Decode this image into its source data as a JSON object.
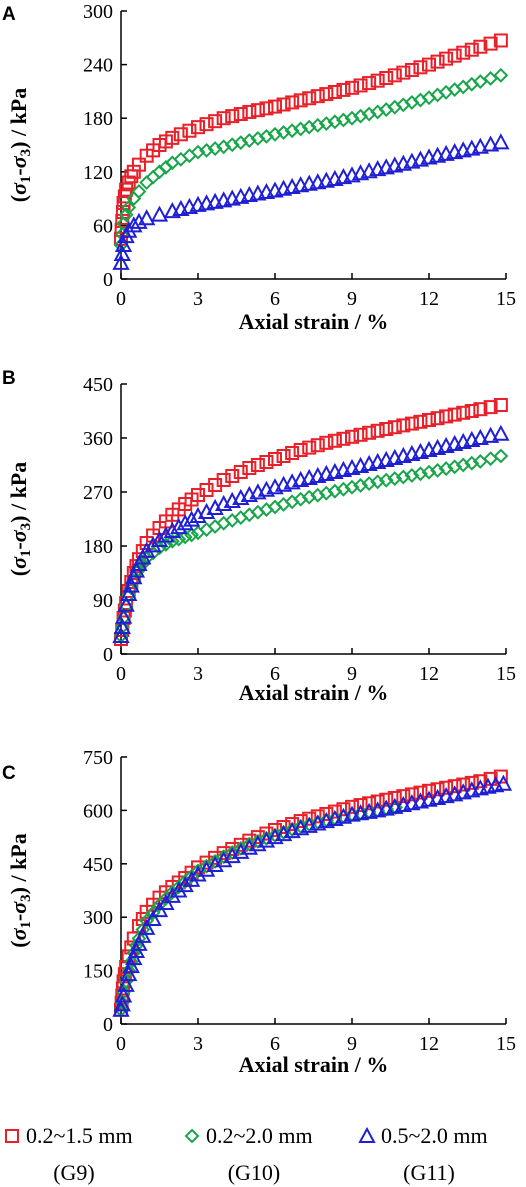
{
  "colors": {
    "G9": "#e8202a",
    "G10": "#19a64a",
    "G11": "#1f1fd6",
    "axis": "#000000"
  },
  "legend": [
    {
      "key": "G9",
      "marker": "square",
      "label": "0.2~1.5 mm",
      "sublabel": "(G9)"
    },
    {
      "key": "G10",
      "marker": "diamond",
      "label": "0.2~2.0 mm",
      "sublabel": "(G10)"
    },
    {
      "key": "G11",
      "marker": "triangle",
      "label": "0.5~2.0 mm",
      "sublabel": "(G11)"
    }
  ],
  "chart_data": [
    {
      "panel": "A",
      "type": "scatter",
      "xlabel": "Axial strain / %",
      "ylabel": "(σ1-σ3) / kPa",
      "xlim": [
        0,
        15
      ],
      "ylim": [
        0,
        300
      ],
      "xticks": [
        0,
        3,
        6,
        9,
        12,
        15
      ],
      "yticks": [
        0,
        60,
        120,
        180,
        240,
        300
      ],
      "grid": false,
      "legend_position": "bottom",
      "series": [
        {
          "key": "G9",
          "x": [
            0,
            0.05,
            0.1,
            0.2,
            0.3,
            0.4,
            0.5,
            0.7,
            1,
            1.5,
            2,
            3,
            4,
            5,
            6,
            7,
            8,
            9,
            10,
            11,
            12,
            13,
            14,
            14.8
          ],
          "y": [
            45,
            65,
            85,
            100,
            108,
            115,
            120,
            128,
            138,
            150,
            158,
            170,
            180,
            187,
            193,
            200,
            207,
            214,
            222,
            231,
            240,
            250,
            260,
            267
          ]
        },
        {
          "key": "G10",
          "x": [
            0,
            0.05,
            0.1,
            0.2,
            0.3,
            0.5,
            0.7,
            1,
            1.5,
            2,
            3,
            4,
            5,
            6,
            7,
            8,
            9,
            10,
            11,
            12,
            13,
            14,
            14.8
          ],
          "y": [
            38,
            50,
            62,
            72,
            80,
            90,
            98,
            108,
            120,
            130,
            142,
            148,
            155,
            162,
            168,
            174,
            180,
            187,
            195,
            203,
            212,
            221,
            228
          ]
        },
        {
          "key": "G11",
          "x": [
            0,
            0.05,
            0.1,
            0.2,
            0.3,
            0.5,
            0.7,
            1,
            1.5,
            2,
            3,
            4,
            5,
            6,
            7,
            8,
            9,
            10,
            11,
            12,
            13,
            14,
            14.8
          ],
          "y": [
            18,
            28,
            38,
            48,
            54,
            60,
            64,
            68,
            72,
            76,
            83,
            88,
            94,
            99,
            105,
            110,
            116,
            123,
            129,
            136,
            142,
            148,
            153
          ]
        }
      ]
    },
    {
      "panel": "B",
      "type": "scatter",
      "xlabel": "Axial strain / %",
      "ylabel": "(σ1-σ3) / kPa",
      "xlim": [
        0,
        15
      ],
      "ylim": [
        0,
        450
      ],
      "xticks": [
        0,
        3,
        6,
        9,
        12,
        15
      ],
      "yticks": [
        0,
        90,
        180,
        270,
        360,
        450
      ],
      "grid": false,
      "legend_position": "bottom",
      "series": [
        {
          "key": "G9",
          "x": [
            0,
            0.05,
            0.1,
            0.2,
            0.3,
            0.5,
            0.7,
            1,
            1.5,
            2,
            2.5,
            3,
            4,
            5,
            6,
            7,
            8,
            9,
            10,
            11,
            12,
            13,
            14,
            14.8
          ],
          "y": [
            25,
            40,
            60,
            85,
            105,
            135,
            158,
            185,
            210,
            232,
            250,
            265,
            290,
            310,
            325,
            340,
            352,
            362,
            372,
            381,
            390,
            399,
            408,
            415
          ]
        },
        {
          "key": "G10",
          "x": [
            0,
            0.05,
            0.1,
            0.2,
            0.3,
            0.5,
            0.7,
            1,
            1.5,
            2,
            2.5,
            3,
            4,
            5,
            6,
            7,
            8,
            9,
            10,
            11,
            12,
            13,
            14,
            14.8
          ],
          "y": [
            30,
            45,
            60,
            80,
            98,
            122,
            140,
            160,
            177,
            188,
            195,
            202,
            218,
            232,
            245,
            258,
            268,
            278,
            287,
            295,
            303,
            312,
            321,
            330
          ]
        },
        {
          "key": "G11",
          "x": [
            0,
            0.05,
            0.1,
            0.2,
            0.3,
            0.5,
            0.7,
            1,
            1.5,
            2,
            2.5,
            3,
            4,
            5,
            6,
            7,
            8,
            9,
            10,
            11,
            12,
            13,
            14,
            14.8
          ],
          "y": [
            30,
            45,
            62,
            82,
            100,
            128,
            150,
            172,
            190,
            205,
            218,
            230,
            250,
            265,
            278,
            290,
            300,
            310,
            320,
            330,
            340,
            350,
            360,
            367
          ]
        }
      ]
    },
    {
      "panel": "C",
      "type": "scatter",
      "xlabel": "Axial strain / %",
      "ylabel": "(σ1-σ3) / kPa",
      "xlim": [
        0,
        15
      ],
      "ylim": [
        0,
        750
      ],
      "xticks": [
        0,
        3,
        6,
        9,
        12,
        15
      ],
      "yticks": [
        0,
        150,
        300,
        450,
        600,
        750
      ],
      "grid": false,
      "legend_position": "bottom",
      "series": [
        {
          "key": "G9",
          "x": [
            0,
            0.05,
            0.1,
            0.2,
            0.3,
            0.5,
            0.7,
            1,
            1.5,
            2,
            2.5,
            3,
            4,
            5,
            6,
            7,
            8,
            9,
            10,
            11,
            12,
            13,
            14,
            14.8
          ],
          "y": [
            40,
            80,
            120,
            160,
            190,
            240,
            275,
            315,
            355,
            385,
            410,
            440,
            480,
            515,
            545,
            570,
            590,
            610,
            625,
            640,
            655,
            668,
            682,
            695
          ]
        },
        {
          "key": "G10",
          "x": [
            0,
            0.05,
            0.1,
            0.2,
            0.3,
            0.5,
            0.7,
            1,
            1.5,
            2,
            2.5,
            3,
            4,
            5,
            6,
            7,
            8,
            9,
            10,
            10.7
          ],
          "y": [
            40,
            60,
            90,
            120,
            150,
            200,
            240,
            290,
            335,
            370,
            400,
            430,
            470,
            505,
            530,
            555,
            572,
            588,
            600,
            608
          ]
        },
        {
          "key": "G11",
          "x": [
            0,
            0.05,
            0.1,
            0.2,
            0.3,
            0.5,
            0.7,
            1,
            1.5,
            2,
            2.5,
            3,
            4,
            5,
            6,
            7,
            8,
            9,
            10,
            11,
            12,
            13,
            14,
            14.9
          ],
          "y": [
            40,
            55,
            80,
            110,
            140,
            185,
            225,
            270,
            320,
            360,
            390,
            420,
            460,
            495,
            525,
            550,
            570,
            588,
            600,
            615,
            630,
            645,
            662,
            675
          ]
        }
      ]
    }
  ]
}
